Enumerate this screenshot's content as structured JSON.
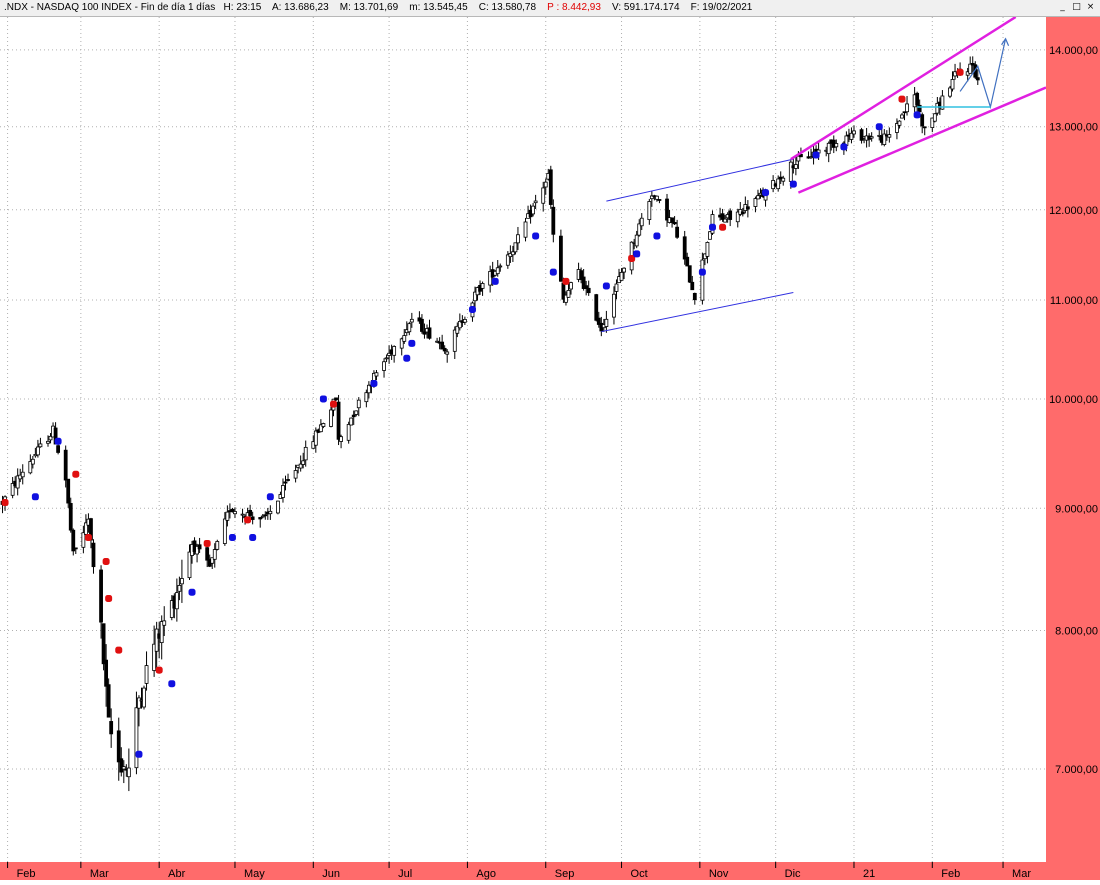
{
  "title_bar": {
    "symbol": ".NDX - NASDAQ 100 INDEX",
    "period": "Fin de día 1 días",
    "time": "H: 23:15",
    "open": "A: 13.686,23",
    "high": "M: 13.701,69",
    "low": "m: 13.545,45",
    "close": "C: 13.580,78",
    "points": "P : 8.442,93",
    "volume": "V: 591.174.174",
    "date": "F: 19/02/2021"
  },
  "window_buttons": [
    "_",
    "□",
    "×"
  ],
  "colors": {
    "axis_background": "#ff6b6b",
    "candle": "#000000",
    "marker_blue": "#1010e0",
    "marker_red": "#e01010",
    "channel_blue": "#3030e0",
    "channel_magenta": "#e020e0",
    "projection_line": "#4070c0",
    "support_line": "#30c0e0",
    "grid": "#b0b0b0"
  },
  "chart_data": {
    "type": "candlestick",
    "y_ticks": [
      "7.000,00",
      "8.000,00",
      "9.000,00",
      "10.000,00",
      "11.000,00",
      "12.000,00",
      "13.000,00",
      "14.000,00"
    ],
    "x_labels": [
      "Feb",
      "Mar",
      "Abr",
      "May",
      "Jun",
      "Jul",
      "Ago",
      "Sep",
      "Oct",
      "Nov",
      "Dic",
      "21",
      "Feb",
      "Mar"
    ],
    "ylim": [
      6400,
      14450
    ],
    "xlim": [
      "2020-01-29",
      "2021-03-18"
    ],
    "y_scale": "log",
    "grid": true,
    "anchors": [
      [
        "2020-01-30",
        9050
      ],
      [
        "2020-02-07",
        9330
      ],
      [
        "2020-02-19",
        9700
      ],
      [
        "2020-02-24",
        9250
      ],
      [
        "2020-02-27",
        8600
      ],
      [
        "2020-03-04",
        8900
      ],
      [
        "2020-03-09",
        8000
      ],
      [
        "2020-03-12",
        7300
      ],
      [
        "2020-03-16",
        7050
      ],
      [
        "2020-03-20",
        7000
      ],
      [
        "2020-03-24",
        7500
      ],
      [
        "2020-03-30",
        7900
      ],
      [
        "2020-04-06",
        8200
      ],
      [
        "2020-04-14",
        8700
      ],
      [
        "2020-04-21",
        8500
      ],
      [
        "2020-04-29",
        9000
      ],
      [
        "2020-05-13",
        8900
      ],
      [
        "2020-05-29",
        9500
      ],
      [
        "2020-06-10",
        10000
      ],
      [
        "2020-06-11",
        9600
      ],
      [
        "2020-06-22",
        10100
      ],
      [
        "2020-07-10",
        10800
      ],
      [
        "2020-07-24",
        10500
      ],
      [
        "2020-08-05",
        11100
      ],
      [
        "2020-08-20",
        11600
      ],
      [
        "2020-09-02",
        12400
      ],
      [
        "2020-09-04",
        11700
      ],
      [
        "2020-09-08",
        11000
      ],
      [
        "2020-09-14",
        11300
      ],
      [
        "2020-09-23",
        10700
      ],
      [
        "2020-10-01",
        11300
      ],
      [
        "2020-10-13",
        12200
      ],
      [
        "2020-10-22",
        11800
      ],
      [
        "2020-10-30",
        11050
      ],
      [
        "2020-11-06",
        11900
      ],
      [
        "2020-11-13",
        11900
      ],
      [
        "2020-11-27",
        12200
      ],
      [
        "2020-12-08",
        12550
      ],
      [
        "2020-12-31",
        12900
      ],
      [
        "2021-01-14",
        12850
      ],
      [
        "2021-01-25",
        13400
      ],
      [
        "2021-01-29",
        12950
      ],
      [
        "2021-02-10",
        13650
      ],
      [
        "2021-02-17",
        13800
      ],
      [
        "2021-02-19",
        13580
      ]
    ],
    "markers": [
      [
        "2020-01-31",
        9050,
        "red"
      ],
      [
        "2020-02-12",
        9100,
        "blue"
      ],
      [
        "2020-02-21",
        9600,
        "blue"
      ],
      [
        "2020-02-28",
        9300,
        "red"
      ],
      [
        "2020-03-04",
        8750,
        "red"
      ],
      [
        "2020-03-11",
        8550,
        "red"
      ],
      [
        "2020-03-12",
        8250,
        "red"
      ],
      [
        "2020-03-16",
        7850,
        "red"
      ],
      [
        "2020-03-24",
        7100,
        "blue"
      ],
      [
        "2020-04-01",
        7700,
        "red"
      ],
      [
        "2020-04-06",
        7600,
        "blue"
      ],
      [
        "2020-04-14",
        8300,
        "blue"
      ],
      [
        "2020-04-20",
        8700,
        "red"
      ],
      [
        "2020-04-30",
        8750,
        "blue"
      ],
      [
        "2020-05-06",
        8900,
        "red"
      ],
      [
        "2020-05-08",
        8750,
        "blue"
      ],
      [
        "2020-05-15",
        9100,
        "blue"
      ],
      [
        "2020-06-05",
        10000,
        "blue"
      ],
      [
        "2020-06-09",
        9950,
        "red"
      ],
      [
        "2020-06-25",
        10150,
        "blue"
      ],
      [
        "2020-07-08",
        10400,
        "blue"
      ],
      [
        "2020-07-10",
        10550,
        "blue"
      ],
      [
        "2020-08-03",
        10900,
        "blue"
      ],
      [
        "2020-08-12",
        11200,
        "blue"
      ],
      [
        "2020-08-28",
        11700,
        "blue"
      ],
      [
        "2020-09-04",
        11300,
        "blue"
      ],
      [
        "2020-09-09",
        11200,
        "red"
      ],
      [
        "2020-09-25",
        11150,
        "blue"
      ],
      [
        "2020-10-05",
        11450,
        "red"
      ],
      [
        "2020-10-07",
        11500,
        "blue"
      ],
      [
        "2020-10-15",
        11700,
        "blue"
      ],
      [
        "2020-11-02",
        11300,
        "blue"
      ],
      [
        "2020-11-06",
        11800,
        "blue"
      ],
      [
        "2020-11-10",
        11800,
        "red"
      ],
      [
        "2020-11-27",
        12200,
        "blue"
      ],
      [
        "2020-12-08",
        12300,
        "blue"
      ],
      [
        "2020-12-17",
        12650,
        "blue"
      ],
      [
        "2020-12-28",
        12750,
        "blue"
      ],
      [
        "2021-01-11",
        13000,
        "blue"
      ],
      [
        "2021-01-20",
        13350,
        "red"
      ],
      [
        "2021-01-26",
        13150,
        "blue"
      ],
      [
        "2021-02-12",
        13700,
        "red"
      ]
    ],
    "trendlines": [
      {
        "style": "blue",
        "points": [
          [
            "2020-09-25",
            12100
          ],
          [
            "2020-12-08",
            12600
          ]
        ]
      },
      {
        "style": "blue",
        "points": [
          [
            "2020-09-23",
            10670
          ],
          [
            "2020-12-08",
            11080
          ]
        ]
      },
      {
        "style": "magenta",
        "points": [
          [
            "2020-12-07",
            12600
          ],
          [
            "2021-03-06",
            14450
          ]
        ]
      },
      {
        "style": "magenta",
        "points": [
          [
            "2020-12-10",
            12200
          ],
          [
            "2021-03-18",
            13500
          ]
        ]
      },
      {
        "style": "projection",
        "points": [
          [
            "2021-02-12",
            13450
          ],
          [
            "2021-02-19",
            13780
          ],
          [
            "2021-02-24",
            13250
          ],
          [
            "2021-03-02",
            14150
          ]
        ]
      },
      {
        "style": "support",
        "points": [
          [
            "2021-01-26",
            13250
          ],
          [
            "2021-02-24",
            13250
          ]
        ]
      }
    ]
  }
}
